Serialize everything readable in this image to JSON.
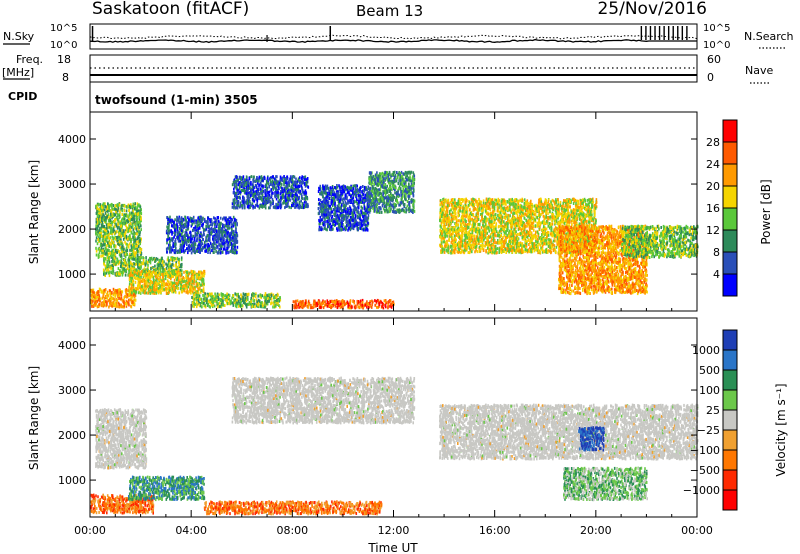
{
  "header": {
    "station": "Saskatoon (fitACF)",
    "beam": "Beam 13",
    "date": "25/Nov/2016"
  },
  "noise_panel": {
    "left_label": "N.Sky",
    "right_label": "N.Search",
    "ticks_left": [
      "10^5",
      "10^0"
    ],
    "ticks_right": [
      "10^5",
      "10^0"
    ]
  },
  "freq_panel": {
    "left_label_1": "Freq.",
    "left_label_2": "[MHz]",
    "right_label": "Nave",
    "ticks_left": [
      "18",
      "8"
    ],
    "ticks_right": [
      "60",
      "0"
    ]
  },
  "cpid_panel": {
    "label": "CPID",
    "text": "twofsound (1-min) 3505"
  },
  "colors": {
    "power": [
      "#0000ff",
      "#2a4fb8",
      "#2d8a5a",
      "#5ac83a",
      "#f5d400",
      "#ff9a00",
      "#ff5a00",
      "#ff0000"
    ],
    "velocity": [
      "#1f3fb5",
      "#2a75c8",
      "#2a8f55",
      "#6cc84a",
      "#c8c8c4",
      "#f0a030",
      "#ff7700",
      "#ff2a00",
      "#ff0000"
    ],
    "ground_scatter": "#c8c8c4"
  },
  "chart_data": [
    {
      "type": "heatmap",
      "name": "power-panel",
      "ylabel": "Slant Range [km]",
      "yticks": [
        "1000",
        "2000",
        "3000",
        "4000"
      ],
      "ylim": [
        180,
        4600
      ],
      "xlim": [
        0,
        24
      ],
      "colorbar_label": "Power [dB]",
      "colorbar_ticks": [
        "4",
        "8",
        "12",
        "16",
        "20",
        "24",
        "28"
      ],
      "colorbar_range": [
        0,
        32
      ],
      "regions": [
        {
          "t0": 0.0,
          "t1": 1.8,
          "r0": 300,
          "r1": 700,
          "level": 5
        },
        {
          "t0": 0.2,
          "t1": 2.0,
          "r0": 1400,
          "r1": 2600,
          "level": 3
        },
        {
          "t0": 0.5,
          "t1": 3.6,
          "r0": 1000,
          "r1": 1400,
          "level": 3
        },
        {
          "t0": 1.5,
          "t1": 4.5,
          "r0": 600,
          "r1": 1100,
          "level": 4
        },
        {
          "t0": 3.0,
          "t1": 5.8,
          "r0": 1500,
          "r1": 2300,
          "level": 1
        },
        {
          "t0": 4.0,
          "t1": 7.5,
          "r0": 300,
          "r1": 600,
          "level": 3
        },
        {
          "t0": 5.6,
          "t1": 8.6,
          "r0": 2500,
          "r1": 3200,
          "level": 1
        },
        {
          "t0": 9.0,
          "t1": 11.0,
          "r0": 2000,
          "r1": 3000,
          "level": 1
        },
        {
          "t0": 8.0,
          "t1": 12.0,
          "r0": 280,
          "r1": 450,
          "level": 6
        },
        {
          "t0": 11.0,
          "t1": 12.8,
          "r0": 2400,
          "r1": 3300,
          "level": 2
        },
        {
          "t0": 13.8,
          "t1": 20.0,
          "r0": 1500,
          "r1": 2700,
          "level": 4
        },
        {
          "t0": 18.5,
          "t1": 22.0,
          "r0": 600,
          "r1": 2100,
          "level": 5
        },
        {
          "t0": 21.0,
          "t1": 24.0,
          "r0": 1400,
          "r1": 2100,
          "level": 3
        }
      ]
    },
    {
      "type": "heatmap",
      "name": "velocity-panel",
      "ylabel": "Slant Range [km]",
      "yticks": [
        "1000",
        "2000",
        "3000",
        "4000"
      ],
      "ylim": [
        180,
        4600
      ],
      "xlim": [
        0,
        24
      ],
      "xlabel": "Time UT",
      "xticks": [
        "00:00",
        "04:00",
        "08:00",
        "12:00",
        "16:00",
        "20:00",
        "00:00"
      ],
      "colorbar_label": "Velocity [m s⁻¹]",
      "colorbar_ticks": [
        "1000",
        "500",
        "100",
        "25",
        "−25",
        "−100",
        "−500",
        "−1000"
      ],
      "regions": [
        {
          "t0": 0.0,
          "t1": 2.5,
          "r0": 300,
          "r1": 700,
          "level": 6
        },
        {
          "t0": 0.2,
          "t1": 2.2,
          "r0": 1300,
          "r1": 2600,
          "level": 4
        },
        {
          "t0": 1.5,
          "t1": 4.5,
          "r0": 600,
          "r1": 1100,
          "level": 2
        },
        {
          "t0": 4.5,
          "t1": 11.5,
          "r0": 280,
          "r1": 550,
          "level": 6
        },
        {
          "t0": 5.6,
          "t1": 12.8,
          "r0": 2300,
          "r1": 3300,
          "level": 4
        },
        {
          "t0": 13.8,
          "t1": 24.0,
          "r0": 1500,
          "r1": 2700,
          "level": 4
        },
        {
          "t0": 19.3,
          "t1": 20.3,
          "r0": 1700,
          "r1": 2200,
          "level": 0
        },
        {
          "t0": 18.7,
          "t1": 22.0,
          "r0": 600,
          "r1": 1300,
          "level": 3
        }
      ]
    }
  ]
}
